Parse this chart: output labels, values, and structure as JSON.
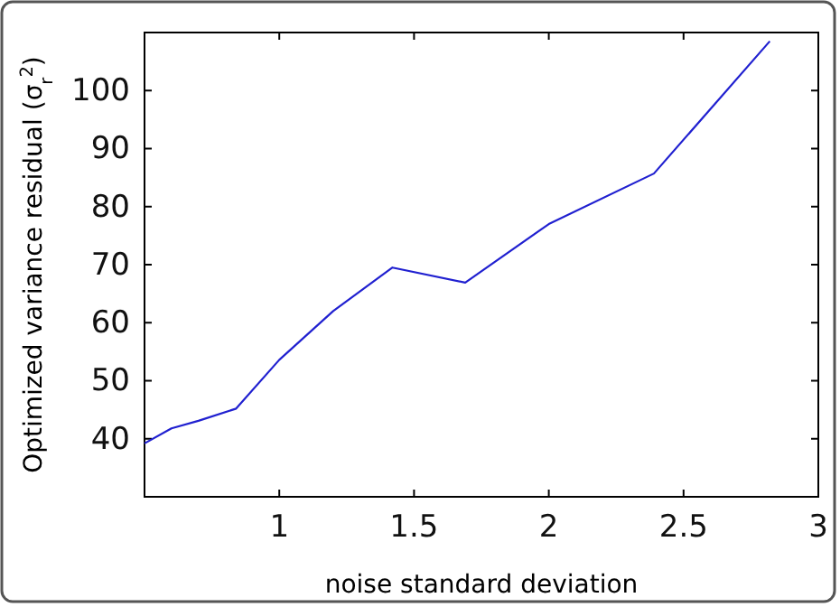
{
  "chart_data": {
    "type": "line",
    "xlabel": "noise standard deviation",
    "ylabel": "Optimized variance residual (σ$_{r}$$^{2}$)",
    "x": [
      0.5,
      0.6,
      0.7,
      0.84,
      1.0,
      1.2,
      1.42,
      1.69,
      2.0,
      2.39,
      2.82
    ],
    "series": [
      {
        "color": "#2020d0",
        "values": [
          39.2,
          41.8,
          43.1,
          45.2,
          53.6,
          62.0,
          69.5,
          66.9,
          77.0,
          85.7,
          108.5
        ]
      }
    ],
    "xlim": [
      0.5,
      3
    ],
    "xticks": [
      {
        "value": 1,
        "label": "1"
      },
      1.5,
      2,
      2.5,
      3
    ],
    "ylim": [
      30,
      110
    ],
    "yticks": [
      40,
      50,
      60,
      70,
      80,
      90,
      100
    ],
    "grid": false,
    "marker": "none",
    "line_style": "solid"
  }
}
